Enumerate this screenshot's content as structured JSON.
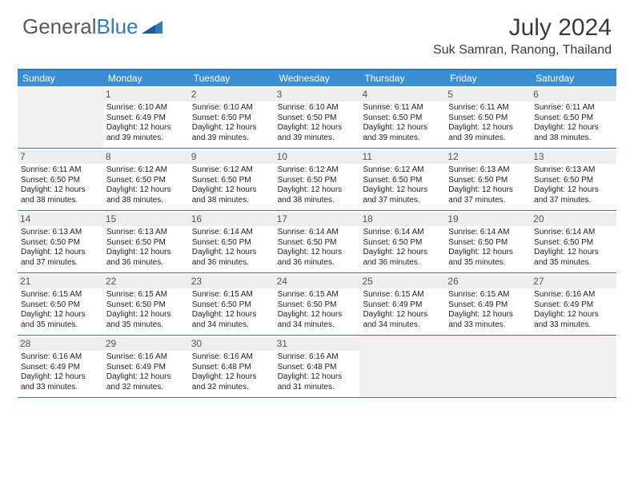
{
  "logo": {
    "text1": "General",
    "text2": "Blue"
  },
  "title": "July 2024",
  "location": "Suk Samran, Ranong, Thailand",
  "colors": {
    "header_bar": "#3a8fd4",
    "border": "#2f7bbf",
    "daynum_bg": "#eeeeee",
    "empty_bg": "#f0f0f0",
    "text": "#222222",
    "logo_gray": "#5a5a5a",
    "logo_blue": "#2f7bbf"
  },
  "daysOfWeek": [
    "Sunday",
    "Monday",
    "Tuesday",
    "Wednesday",
    "Thursday",
    "Friday",
    "Saturday"
  ],
  "weeks": [
    [
      null,
      {
        "n": "1",
        "sr": "6:10 AM",
        "ss": "6:49 PM",
        "dl": "12 hours and 39 minutes."
      },
      {
        "n": "2",
        "sr": "6:10 AM",
        "ss": "6:50 PM",
        "dl": "12 hours and 39 minutes."
      },
      {
        "n": "3",
        "sr": "6:10 AM",
        "ss": "6:50 PM",
        "dl": "12 hours and 39 minutes."
      },
      {
        "n": "4",
        "sr": "6:11 AM",
        "ss": "6:50 PM",
        "dl": "12 hours and 39 minutes."
      },
      {
        "n": "5",
        "sr": "6:11 AM",
        "ss": "6:50 PM",
        "dl": "12 hours and 39 minutes."
      },
      {
        "n": "6",
        "sr": "6:11 AM",
        "ss": "6:50 PM",
        "dl": "12 hours and 38 minutes."
      }
    ],
    [
      {
        "n": "7",
        "sr": "6:11 AM",
        "ss": "6:50 PM",
        "dl": "12 hours and 38 minutes."
      },
      {
        "n": "8",
        "sr": "6:12 AM",
        "ss": "6:50 PM",
        "dl": "12 hours and 38 minutes."
      },
      {
        "n": "9",
        "sr": "6:12 AM",
        "ss": "6:50 PM",
        "dl": "12 hours and 38 minutes."
      },
      {
        "n": "10",
        "sr": "6:12 AM",
        "ss": "6:50 PM",
        "dl": "12 hours and 38 minutes."
      },
      {
        "n": "11",
        "sr": "6:12 AM",
        "ss": "6:50 PM",
        "dl": "12 hours and 37 minutes."
      },
      {
        "n": "12",
        "sr": "6:13 AM",
        "ss": "6:50 PM",
        "dl": "12 hours and 37 minutes."
      },
      {
        "n": "13",
        "sr": "6:13 AM",
        "ss": "6:50 PM",
        "dl": "12 hours and 37 minutes."
      }
    ],
    [
      {
        "n": "14",
        "sr": "6:13 AM",
        "ss": "6:50 PM",
        "dl": "12 hours and 37 minutes."
      },
      {
        "n": "15",
        "sr": "6:13 AM",
        "ss": "6:50 PM",
        "dl": "12 hours and 36 minutes."
      },
      {
        "n": "16",
        "sr": "6:14 AM",
        "ss": "6:50 PM",
        "dl": "12 hours and 36 minutes."
      },
      {
        "n": "17",
        "sr": "6:14 AM",
        "ss": "6:50 PM",
        "dl": "12 hours and 36 minutes."
      },
      {
        "n": "18",
        "sr": "6:14 AM",
        "ss": "6:50 PM",
        "dl": "12 hours and 36 minutes."
      },
      {
        "n": "19",
        "sr": "6:14 AM",
        "ss": "6:50 PM",
        "dl": "12 hours and 35 minutes."
      },
      {
        "n": "20",
        "sr": "6:14 AM",
        "ss": "6:50 PM",
        "dl": "12 hours and 35 minutes."
      }
    ],
    [
      {
        "n": "21",
        "sr": "6:15 AM",
        "ss": "6:50 PM",
        "dl": "12 hours and 35 minutes."
      },
      {
        "n": "22",
        "sr": "6:15 AM",
        "ss": "6:50 PM",
        "dl": "12 hours and 35 minutes."
      },
      {
        "n": "23",
        "sr": "6:15 AM",
        "ss": "6:50 PM",
        "dl": "12 hours and 34 minutes."
      },
      {
        "n": "24",
        "sr": "6:15 AM",
        "ss": "6:50 PM",
        "dl": "12 hours and 34 minutes."
      },
      {
        "n": "25",
        "sr": "6:15 AM",
        "ss": "6:49 PM",
        "dl": "12 hours and 34 minutes."
      },
      {
        "n": "26",
        "sr": "6:15 AM",
        "ss": "6:49 PM",
        "dl": "12 hours and 33 minutes."
      },
      {
        "n": "27",
        "sr": "6:16 AM",
        "ss": "6:49 PM",
        "dl": "12 hours and 33 minutes."
      }
    ],
    [
      {
        "n": "28",
        "sr": "6:16 AM",
        "ss": "6:49 PM",
        "dl": "12 hours and 33 minutes."
      },
      {
        "n": "29",
        "sr": "6:16 AM",
        "ss": "6:49 PM",
        "dl": "12 hours and 32 minutes."
      },
      {
        "n": "30",
        "sr": "6:16 AM",
        "ss": "6:48 PM",
        "dl": "12 hours and 32 minutes."
      },
      {
        "n": "31",
        "sr": "6:16 AM",
        "ss": "6:48 PM",
        "dl": "12 hours and 31 minutes."
      },
      null,
      null,
      null
    ]
  ],
  "labels": {
    "sunrise": "Sunrise:",
    "sunset": "Sunset:",
    "daylight": "Daylight:"
  }
}
